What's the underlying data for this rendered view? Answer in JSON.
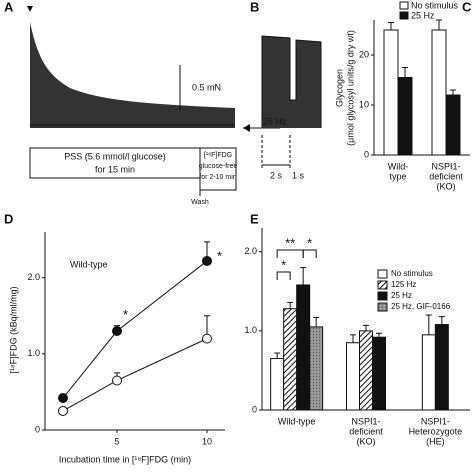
{
  "panel_labels": [
    "A",
    "B",
    "C",
    "D",
    "E"
  ],
  "panels": {
    "A": {
      "scale_label": "0.5 mN",
      "protocol": [
        "PSS (5.6 mmol/l glucose)",
        "for 15 min"
      ],
      "tracer": [
        "[¹⁸F]FDG",
        "glucose-free",
        "for 2-10 min"
      ],
      "wash": "Wash"
    },
    "B": {
      "stimulus": "25 Hz",
      "times": [
        "2 s",
        "1 s"
      ]
    }
  },
  "chart_data": [
    {
      "type": "bar",
      "ylabel": [
        "Glycogen",
        "(µmol glycosyl units/g dry wt)"
      ],
      "categories": [
        [
          "Wild-",
          "type"
        ],
        [
          "NSPI1-",
          "deficient",
          "(KO)"
        ]
      ],
      "series": [
        {
          "name": "No stimulus",
          "color": "#ffffff",
          "values": [
            25,
            25
          ],
          "errors": [
            1.5,
            2
          ]
        },
        {
          "name": "25 Hz",
          "color": "#111111",
          "values": [
            15.5,
            12
          ],
          "errors": [
            2,
            1
          ]
        }
      ],
      "ylim": [
        0,
        27
      ],
      "yticks": [
        0,
        10,
        20
      ]
    },
    {
      "type": "line",
      "annotation": "Wild-type",
      "ylabel": "[¹⁸F]FDG (kBq/ml/mg)",
      "xlabel": "Incubation time in [¹⁸F]FDG (min)",
      "x": [
        2,
        5,
        10
      ],
      "series": [
        {
          "color": "#111111",
          "values": [
            0.42,
            1.3,
            2.22
          ],
          "errors": [
            0.05,
            0.07,
            0.25
          ]
        },
        {
          "color": "#ffffff",
          "values": [
            0.25,
            0.65,
            1.2
          ],
          "errors": [
            0.03,
            0.1,
            0.3
          ]
        }
      ],
      "significance": [
        "*",
        "*"
      ],
      "xlim": [
        1,
        11
      ],
      "xticks": [
        5,
        10
      ],
      "ylim": [
        0,
        2.6
      ],
      "yticks": [
        0,
        {
          "value": 1,
          "label": "1.0"
        },
        {
          "value": 2,
          "label": "2.0"
        }
      ]
    },
    {
      "type": "bar",
      "categories": [
        [
          "Wild-type"
        ],
        [
          "NSPI1-",
          "deficient",
          "(KO)"
        ],
        [
          "NSPI1-",
          "Heterozygote",
          "(HE)"
        ]
      ],
      "series": [
        {
          "name": "No stimulus",
          "color": "#ffffff",
          "pattern": "none",
          "values": [
            0.65,
            0.85,
            0.95
          ],
          "errors": [
            0.07,
            0.1,
            0.25
          ]
        },
        {
          "name": "125 Hz",
          "color": "#ffffff",
          "pattern": "hatch",
          "values": [
            1.28,
            1.0,
            null
          ],
          "errors": [
            0.08,
            0.07,
            null
          ]
        },
        {
          "name": "25 Hz",
          "color": "#111111",
          "pattern": "none",
          "values": [
            1.58,
            0.92,
            1.08
          ],
          "errors": [
            0.22,
            0.05,
            0.1
          ]
        },
        {
          "name": "25 Hz, GIF-0166",
          "color": "#999999",
          "pattern": "dots",
          "values": [
            1.05,
            null,
            null
          ],
          "errors": [
            0.12,
            null,
            null
          ]
        }
      ],
      "significance": [
        "*",
        "**",
        "*"
      ],
      "ylim": [
        0,
        2.3
      ],
      "yticks": [
        0,
        {
          "value": 1,
          "label": "1.0"
        },
        {
          "value": 2,
          "label": "2.0"
        }
      ]
    }
  ]
}
